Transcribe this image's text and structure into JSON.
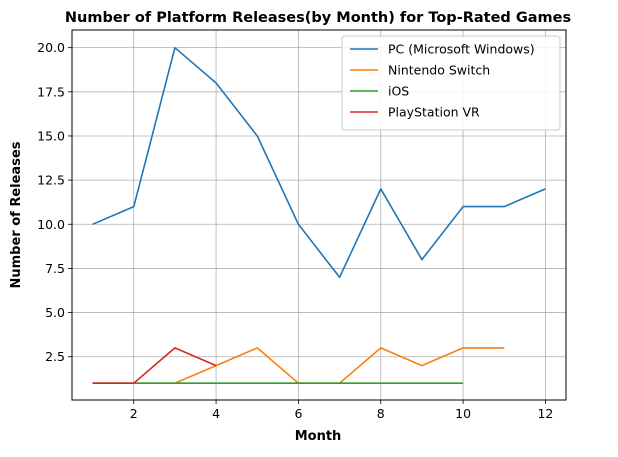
{
  "chart_data": {
    "type": "line",
    "title": "Number of Platform Releases(by Month) for Top-Rated Games",
    "xlabel": "Month",
    "ylabel": "Number of Releases",
    "xlim": [
      0.5,
      12.5
    ],
    "ylim": [
      0.05,
      21.0
    ],
    "xticks": [
      2,
      4,
      6,
      8,
      10,
      12
    ],
    "yticks": [
      2.5,
      5.0,
      7.5,
      10.0,
      12.5,
      15.0,
      17.5,
      20.0
    ],
    "xtick_labels": [
      "2",
      "4",
      "6",
      "8",
      "10",
      "12"
    ],
    "ytick_labels": [
      "2.5",
      "5.0",
      "7.5",
      "10.0",
      "12.5",
      "15.0",
      "17.5",
      "20.0"
    ],
    "grid": true,
    "legend_position": "top-right",
    "series": [
      {
        "name": "PC (Microsoft Windows)",
        "color": "#1f77b4",
        "x": [
          1,
          2,
          3,
          4,
          5,
          6,
          7,
          8,
          9,
          10,
          11,
          12
        ],
        "y": [
          10,
          11,
          20,
          18,
          15,
          10,
          7,
          12,
          8,
          11,
          11,
          12
        ]
      },
      {
        "name": "Nintendo Switch",
        "color": "#ff7f0e",
        "x": [
          1,
          2,
          3,
          4,
          5,
          6,
          7,
          8,
          9,
          10,
          11
        ],
        "y": [
          1,
          1,
          1,
          2,
          3,
          1,
          1,
          3,
          2,
          3,
          3
        ]
      },
      {
        "name": "iOS",
        "color": "#2ca02c",
        "x": [
          1,
          2,
          3,
          4,
          5,
          6,
          7,
          8,
          9,
          10
        ],
        "y": [
          1,
          1,
          1,
          1,
          1,
          1,
          1,
          1,
          1,
          1
        ]
      },
      {
        "name": "PlayStation VR",
        "color": "#d62728",
        "x": [
          1,
          2,
          3,
          4
        ],
        "y": [
          1,
          1,
          3,
          2
        ]
      }
    ]
  }
}
